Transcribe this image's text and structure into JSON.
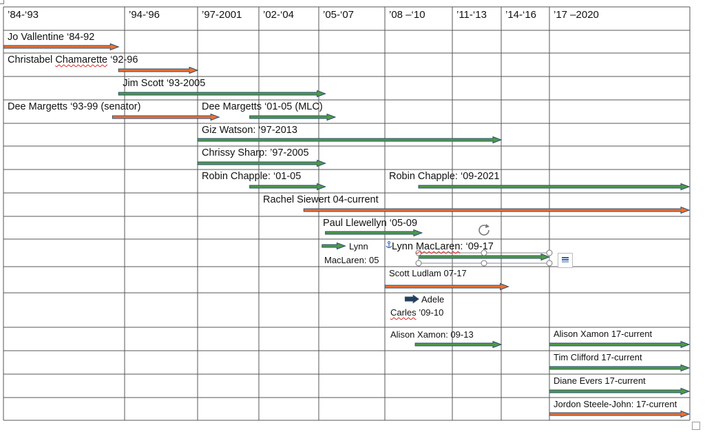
{
  "header": [
    "’84-‘93",
    "’94-‘96",
    "’97-2001",
    "’02-‘04",
    "’05-‘07",
    "’08 –‘10",
    "’11-‘13",
    "’14-‘16",
    "’17 –2020"
  ],
  "colors": {
    "green": "#4e9a46",
    "orange": "#ec7031",
    "navy": "#243e5e",
    "line": "#555555"
  },
  "rows": [
    {
      "labels": [
        {
          "text": "Jo Vallentine ‘84-92",
          "col": 0
        }
      ],
      "bars": [
        {
          "color": "orange",
          "from": 0,
          "to": 0.95
        }
      ]
    },
    {
      "labels": [
        {
          "text": "Christabel Chamarette ‘92-96",
          "col": 0
        }
      ],
      "bars": [
        {
          "color": "orange",
          "from": 0.95,
          "to": 2
        }
      ]
    },
    {
      "labels": [
        {
          "text": "Jim Scott ‘93-2005",
          "col": 0.95
        }
      ],
      "bars": [
        {
          "color": "green",
          "from": 0.95,
          "to": 4.1
        }
      ]
    },
    {
      "labels": [
        {
          "text": "Dee Margetts ‘93-99 (senator)",
          "col": 0
        },
        {
          "text": "Dee Margetts ‘01-05 (MLC)",
          "col": 2
        }
      ],
      "bars": [
        {
          "color": "orange",
          "from": 0.9,
          "to": 2.35
        },
        {
          "color": "green",
          "from": 2.85,
          "to": 4.25
        }
      ]
    },
    {
      "labels": [
        {
          "text": "Giz Watson: ‘97-2013",
          "col": 2
        }
      ],
      "bars": [
        {
          "color": "green",
          "from": 2,
          "to": 7
        }
      ]
    },
    {
      "labels": [
        {
          "text": "Chrissy Sharp: ’97-2005",
          "col": 2
        }
      ],
      "bars": [
        {
          "color": "green",
          "from": 2,
          "to": 4.1
        }
      ]
    },
    {
      "labels": [
        {
          "text": "Robin Chapple: ‘01-05",
          "col": 2
        },
        {
          "text": "Robin Chapple: ‘09-2021",
          "col": 5
        }
      ],
      "bars": [
        {
          "color": "green",
          "from": 2.85,
          "to": 4.1
        },
        {
          "color": "green",
          "from": 5.5,
          "to": 9
        }
      ]
    },
    {
      "labels": [
        {
          "text": "Rachel Siewert 04-current",
          "col": 3
        }
      ],
      "bars": [
        {
          "color": "orange",
          "from": 3.75,
          "to": 9
        }
      ]
    },
    {
      "labels": [
        {
          "text": "Paul Llewellyn ‘05-09",
          "col": 4
        }
      ],
      "bars": [
        {
          "color": "green",
          "from": 4.1,
          "to": 5.55
        }
      ]
    },
    {
      "labels": [
        {
          "text": "Lynn",
          "col": 4.5
        },
        {
          "text": "MacLaren: 05",
          "col": 4
        },
        {
          "text": "Lynn MacLaren: ‘09-17",
          "col": 5.05
        }
      ],
      "bars": [
        {
          "color": "green",
          "from": 4.05,
          "to": 4.4
        },
        {
          "color": "green",
          "from": 5.5,
          "to": 8
        }
      ]
    },
    {
      "labels": [
        {
          "text": "Scott Ludlam 07-17",
          "col": 5
        }
      ],
      "bars": [
        {
          "color": "orange",
          "from": 5,
          "to": 7.15
        }
      ]
    },
    {
      "labels": [
        {
          "text": "Adele",
          "col": 5.55
        },
        {
          "text": "Carles ’09-10",
          "col": 5
        }
      ],
      "bars": [
        {
          "color": "navy",
          "from": 5.3,
          "to": 5.5
        }
      ]
    },
    {
      "labels": [
        {
          "text": "Alison Xamon: 09-13",
          "col": 5
        },
        {
          "text": "Alison Xamon 17-current",
          "col": 8
        }
      ],
      "bars": [
        {
          "color": "green",
          "from": 5.45,
          "to": 7
        },
        {
          "color": "green",
          "from": 8,
          "to": 9
        }
      ]
    },
    {
      "labels": [
        {
          "text": "Tim Clifford 17-current",
          "col": 8
        }
      ],
      "bars": [
        {
          "color": "green",
          "from": 8,
          "to": 9
        }
      ]
    },
    {
      "labels": [
        {
          "text": "Diane Evers 17-current",
          "col": 8
        }
      ],
      "bars": [
        {
          "color": "green",
          "from": 8,
          "to": 9
        }
      ]
    },
    {
      "labels": [
        {
          "text": "Jordon Steele-John: 17-current",
          "col": 8
        }
      ],
      "bars": [
        {
          "color": "orange",
          "from": 8,
          "to": 9
        }
      ]
    }
  ],
  "misc": {
    "rotate_handle": "rotate-handle-icon",
    "anchor": "anchor-icon",
    "layout_options": "layout-options-icon"
  }
}
